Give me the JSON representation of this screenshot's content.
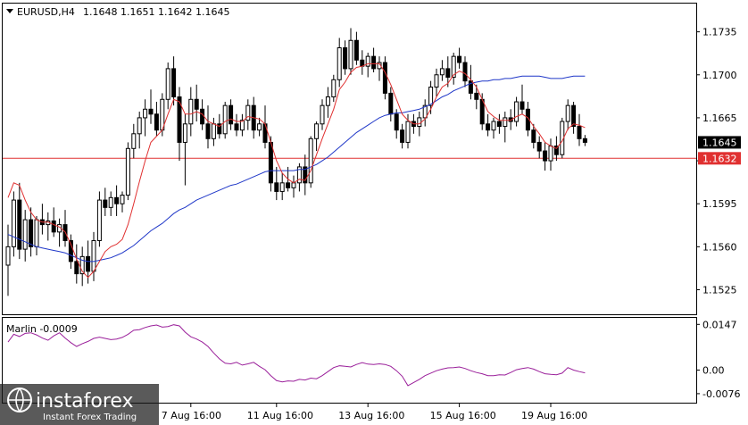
{
  "chart_data": {
    "type": "candlestick",
    "symbol_label": "EURUSD,H4",
    "ohlc_header": "1.1648 1.1651 1.1642 1.1645",
    "price_axis": {
      "ylim": [
        1.1505,
        1.1758
      ],
      "ticks": [
        "1.1735",
        "1.1700",
        "1.1665",
        "1.1630",
        "1.1595",
        "1.1560",
        "1.1525"
      ]
    },
    "current_price_label": "1.1645",
    "current_price": 1.1645,
    "horizontal_level_label": "1.1632",
    "horizontal_level": 1.1632,
    "time_axis_labels": [
      "7 Aug 16:00",
      "11 Aug 16:00",
      "13 Aug 16:00",
      "15 Aug 16:00",
      "19 Aug 16:00"
    ],
    "time_label_bars": [
      32,
      47,
      63,
      79,
      95
    ],
    "candles": [
      [
        1.1545,
        1.1578,
        1.152,
        1.156
      ],
      [
        1.156,
        1.1605,
        1.1552,
        1.1598
      ],
      [
        1.1598,
        1.1612,
        1.155,
        1.1558
      ],
      [
        1.1558,
        1.159,
        1.1548,
        1.1582
      ],
      [
        1.1582,
        1.1592,
        1.1552,
        1.156
      ],
      [
        1.156,
        1.1585,
        1.1553,
        1.1582
      ],
      [
        1.1582,
        1.1595,
        1.157,
        1.1578
      ],
      [
        1.1578,
        1.1588,
        1.1565,
        1.1581
      ],
      [
        1.1581,
        1.1592,
        1.1568,
        1.1572
      ],
      [
        1.1572,
        1.1583,
        1.156,
        1.1578
      ],
      [
        1.1578,
        1.159,
        1.156,
        1.1565
      ],
      [
        1.1565,
        1.157,
        1.1542,
        1.1548
      ],
      [
        1.1548,
        1.1562,
        1.153,
        1.1538
      ],
      [
        1.1538,
        1.156,
        1.1528,
        1.1552
      ],
      [
        1.1552,
        1.1565,
        1.153,
        1.154
      ],
      [
        1.154,
        1.1572,
        1.1532,
        1.1565
      ],
      [
        1.1565,
        1.1605,
        1.156,
        1.1598
      ],
      [
        1.1598,
        1.1608,
        1.1585,
        1.1592
      ],
      [
        1.1592,
        1.1605,
        1.1585,
        1.16
      ],
      [
        1.16,
        1.161,
        1.1585,
        1.1595
      ],
      [
        1.1595,
        1.1605,
        1.1588,
        1.1602
      ],
      [
        1.1602,
        1.1645,
        1.1598,
        1.164
      ],
      [
        1.164,
        1.166,
        1.1632,
        1.1652
      ],
      [
        1.1652,
        1.167,
        1.164,
        1.1665
      ],
      [
        1.1665,
        1.168,
        1.165,
        1.1672
      ],
      [
        1.1672,
        1.1688,
        1.166,
        1.1668
      ],
      [
        1.1668,
        1.1678,
        1.165,
        1.1655
      ],
      [
        1.1655,
        1.1685,
        1.165,
        1.168
      ],
      [
        1.168,
        1.171,
        1.1672,
        1.1705
      ],
      [
        1.1705,
        1.1715,
        1.1675,
        1.1682
      ],
      [
        1.1682,
        1.169,
        1.163,
        1.1645
      ],
      [
        1.1645,
        1.1668,
        1.161,
        1.166
      ],
      [
        1.166,
        1.169,
        1.165,
        1.168
      ],
      [
        1.168,
        1.1692,
        1.1662,
        1.1672
      ],
      [
        1.1672,
        1.168,
        1.1655,
        1.166
      ],
      [
        1.166,
        1.1675,
        1.164,
        1.1648
      ],
      [
        1.1648,
        1.1665,
        1.1642,
        1.166
      ],
      [
        1.166,
        1.1668,
        1.1648,
        1.1652
      ],
      [
        1.1652,
        1.1678,
        1.1648,
        1.1675
      ],
      [
        1.1675,
        1.168,
        1.1655,
        1.166
      ],
      [
        1.166,
        1.1668,
        1.165,
        1.1655
      ],
      [
        1.1655,
        1.1668,
        1.165,
        1.1663
      ],
      [
        1.1663,
        1.168,
        1.1655,
        1.1675
      ],
      [
        1.1675,
        1.1682,
        1.1648,
        1.1655
      ],
      [
        1.1655,
        1.1665,
        1.165,
        1.166
      ],
      [
        1.166,
        1.1675,
        1.164,
        1.1645
      ],
      [
        1.1645,
        1.165,
        1.1605,
        1.1612
      ],
      [
        1.1612,
        1.1625,
        1.1598,
        1.1605
      ],
      [
        1.1605,
        1.162,
        1.1598,
        1.1612
      ],
      [
        1.1612,
        1.1625,
        1.1605,
        1.1608
      ],
      [
        1.1608,
        1.1618,
        1.16,
        1.1612
      ],
      [
        1.1612,
        1.1628,
        1.1605,
        1.1625
      ],
      [
        1.1625,
        1.1635,
        1.1602,
        1.1612
      ],
      [
        1.1612,
        1.165,
        1.1608,
        1.1648
      ],
      [
        1.1648,
        1.1662,
        1.1638,
        1.166
      ],
      [
        1.166,
        1.168,
        1.1655,
        1.1675
      ],
      [
        1.1675,
        1.169,
        1.1665,
        1.1682
      ],
      [
        1.1682,
        1.17,
        1.1678,
        1.1696
      ],
      [
        1.1696,
        1.173,
        1.169,
        1.1722
      ],
      [
        1.1722,
        1.1728,
        1.17,
        1.1705
      ],
      [
        1.1705,
        1.1738,
        1.17,
        1.1728
      ],
      [
        1.1728,
        1.1735,
        1.1708,
        1.1712
      ],
      [
        1.1712,
        1.172,
        1.17,
        1.1707
      ],
      [
        1.1707,
        1.1718,
        1.1698,
        1.1715
      ],
      [
        1.1715,
        1.1722,
        1.1702,
        1.1705
      ],
      [
        1.1705,
        1.1715,
        1.1695,
        1.171
      ],
      [
        1.171,
        1.1715,
        1.168,
        1.1685
      ],
      [
        1.1685,
        1.169,
        1.1662,
        1.1668
      ],
      [
        1.1668,
        1.1672,
        1.1648,
        1.1655
      ],
      [
        1.1655,
        1.166,
        1.164,
        1.1645
      ],
      [
        1.1645,
        1.1668,
        1.164,
        1.1662
      ],
      [
        1.1662,
        1.1668,
        1.1652,
        1.1658
      ],
      [
        1.1658,
        1.167,
        1.165,
        1.1665
      ],
      [
        1.1665,
        1.168,
        1.1658,
        1.1675
      ],
      [
        1.1675,
        1.1695,
        1.1668,
        1.169
      ],
      [
        1.169,
        1.1705,
        1.1682,
        1.17
      ],
      [
        1.17,
        1.1712,
        1.1695,
        1.1705
      ],
      [
        1.1705,
        1.1715,
        1.169,
        1.1698
      ],
      [
        1.1698,
        1.1718,
        1.1692,
        1.1715
      ],
      [
        1.1715,
        1.1722,
        1.1705,
        1.171
      ],
      [
        1.171,
        1.1715,
        1.169,
        1.1695
      ],
      [
        1.1695,
        1.1708,
        1.168,
        1.1685
      ],
      [
        1.1685,
        1.1692,
        1.1672,
        1.168
      ],
      [
        1.168,
        1.1685,
        1.1655,
        1.166
      ],
      [
        1.166,
        1.1668,
        1.165,
        1.1655
      ],
      [
        1.1655,
        1.1665,
        1.1648,
        1.1662
      ],
      [
        1.1662,
        1.1668,
        1.1652,
        1.1658
      ],
      [
        1.1658,
        1.167,
        1.1645,
        1.1665
      ],
      [
        1.1665,
        1.1672,
        1.1655,
        1.1662
      ],
      [
        1.1662,
        1.1682,
        1.1658,
        1.1678
      ],
      [
        1.1678,
        1.1692,
        1.1668,
        1.1672
      ],
      [
        1.1672,
        1.1678,
        1.165,
        1.1655
      ],
      [
        1.1655,
        1.166,
        1.164,
        1.1645
      ],
      [
        1.1645,
        1.165,
        1.1632,
        1.1638
      ],
      [
        1.1638,
        1.1645,
        1.1622,
        1.163
      ],
      [
        1.163,
        1.1648,
        1.1622,
        1.1642
      ],
      [
        1.1642,
        1.165,
        1.163,
        1.1635
      ],
      [
        1.1635,
        1.1665,
        1.1632,
        1.1662
      ],
      [
        1.1662,
        1.168,
        1.1655,
        1.1675
      ],
      [
        1.1675,
        1.1678,
        1.1652,
        1.1658
      ],
      [
        1.1658,
        1.1668,
        1.1642,
        1.1648
      ],
      [
        1.1648,
        1.1651,
        1.1642,
        1.1645
      ]
    ],
    "ma_fast": [
      1.16,
      1.1612,
      1.161,
      1.1598,
      1.1588,
      1.1582,
      1.158,
      1.158,
      1.1578,
      1.1576,
      1.1572,
      1.1562,
      1.155,
      1.154,
      1.1535,
      1.154,
      1.1548,
      1.1556,
      1.156,
      1.1562,
      1.1566,
      1.1578,
      1.1595,
      1.1613,
      1.163,
      1.1645,
      1.165,
      1.1655,
      1.1668,
      1.168,
      1.1678,
      1.1668,
      1.1668,
      1.167,
      1.1668,
      1.1662,
      1.166,
      1.1658,
      1.1662,
      1.1664,
      1.1662,
      1.1662,
      1.1666,
      1.1665,
      1.1664,
      1.166,
      1.1645,
      1.163,
      1.162,
      1.1615,
      1.1612,
      1.1615,
      1.1614,
      1.1622,
      1.1635,
      1.1648,
      1.166,
      1.1672,
      1.1688,
      1.1694,
      1.1702,
      1.1706,
      1.1707,
      1.1709,
      1.1709,
      1.1709,
      1.1702,
      1.1692,
      1.168,
      1.1668,
      1.1663,
      1.166,
      1.166,
      1.1664,
      1.1672,
      1.1682,
      1.169,
      1.1693,
      1.17,
      1.1703,
      1.1701,
      1.1696,
      1.169,
      1.168,
      1.167,
      1.1666,
      1.1663,
      1.1663,
      1.1663,
      1.1666,
      1.1668,
      1.1665,
      1.1658,
      1.1652,
      1.1645,
      1.1642,
      1.164,
      1.1646,
      1.1656,
      1.166,
      1.1659,
      1.1657
    ],
    "ma_slow": [
      1.157,
      1.1568,
      1.1566,
      1.1564,
      1.1562,
      1.156,
      1.1559,
      1.1558,
      1.1557,
      1.1556,
      1.1555,
      1.1553,
      1.1551,
      1.1549,
      1.1548,
      1.1548,
      1.1549,
      1.155,
      1.1551,
      1.1553,
      1.1555,
      1.1558,
      1.1561,
      1.1565,
      1.1569,
      1.1573,
      1.1576,
      1.1579,
      1.1583,
      1.1587,
      1.159,
      1.1592,
      1.1595,
      1.1598,
      1.16,
      1.1602,
      1.1604,
      1.1606,
      1.1608,
      1.161,
      1.1611,
      1.1613,
      1.1615,
      1.1617,
      1.1619,
      1.1621,
      1.1622,
      1.1622,
      1.1622,
      1.1622,
      1.1622,
      1.1623,
      1.1623,
      1.1625,
      1.1627,
      1.163,
      1.1633,
      1.1637,
      1.1641,
      1.1645,
      1.1649,
      1.1653,
      1.1656,
      1.1659,
      1.1662,
      1.1665,
      1.1667,
      1.1668,
      1.1669,
      1.1669,
      1.167,
      1.1671,
      1.1672,
      1.1674,
      1.1676,
      1.1679,
      1.1682,
      1.1684,
      1.1687,
      1.1689,
      1.1691,
      1.1693,
      1.1694,
      1.1695,
      1.1695,
      1.1696,
      1.1696,
      1.1697,
      1.1697,
      1.1698,
      1.1699,
      1.1699,
      1.1699,
      1.1699,
      1.1698,
      1.1697,
      1.1697,
      1.1697,
      1.1698,
      1.1699,
      1.1699,
      1.1699
    ],
    "indicator": {
      "label": "Marlin -0.0009",
      "ylim": [
        -0.0105,
        0.0168
      ],
      "ticks": [
        "0.0147",
        "0.00",
        "-0.0076"
      ],
      "values": [
        0.009,
        0.0115,
        0.0108,
        0.0118,
        0.012,
        0.0113,
        0.0103,
        0.0096,
        0.011,
        0.012,
        0.0103,
        0.0088,
        0.0076,
        0.0085,
        0.0092,
        0.0102,
        0.0106,
        0.0102,
        0.0098,
        0.01,
        0.0105,
        0.0115,
        0.0128,
        0.013,
        0.0137,
        0.0142,
        0.0145,
        0.0138,
        0.014,
        0.0146,
        0.0142,
        0.0122,
        0.0107,
        0.01,
        0.009,
        0.0076,
        0.0055,
        0.0036,
        0.0022,
        0.002,
        0.0025,
        0.0016,
        0.002,
        0.0025,
        0.0012,
        0.0001,
        -0.0018,
        -0.0034,
        -0.0038,
        -0.0035,
        -0.0036,
        -0.003,
        -0.0032,
        -0.0026,
        -0.0028,
        -0.0018,
        -0.0005,
        0.0008,
        0.0014,
        0.0012,
        0.001,
        0.0018,
        0.0024,
        0.0019,
        0.0018,
        0.002,
        0.0018,
        0.0012,
        -0.0002,
        -0.002,
        -0.005,
        -0.004,
        -0.003,
        -0.0018,
        -0.001,
        -0.0002,
        0.0003,
        0.0007,
        0.0008,
        0.001,
        0.0005,
        -0.0002,
        -0.0008,
        -0.0012,
        -0.0018,
        -0.0018,
        -0.0015,
        -0.0016,
        -0.0008,
        0.0001,
        0.0005,
        0.0008,
        0.0003,
        -0.0005,
        -0.0012,
        -0.0014,
        -0.0015,
        -0.001,
        0.0008,
        0.0,
        -0.0005,
        -0.0009
      ]
    },
    "colors": {
      "bull": "#ffffff",
      "bear": "#000000",
      "ma_fast": "#e03030",
      "ma_slow": "#1f37c8",
      "level": "#e03030",
      "indicator": "#9a1f9a",
      "price_label_bg": "#000000",
      "level_label_bg": "#e03030"
    }
  },
  "watermark": {
    "brand": "instaforex",
    "tagline": "Instant Forex Trading"
  }
}
